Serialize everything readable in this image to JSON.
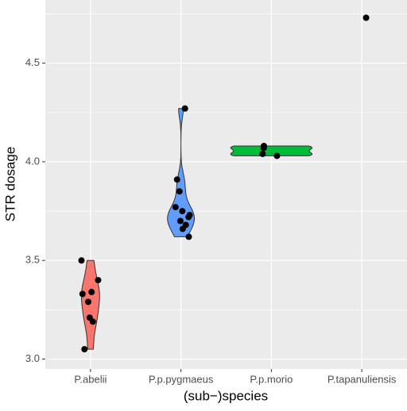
{
  "chart_data": {
    "type": "violin",
    "xlabel": "(sub−)species",
    "ylabel": "STR dosage",
    "series": [
      {
        "name": "P.abelii",
        "color": "#F8766D",
        "values": [
          3.5,
          3.4,
          3.33,
          3.34,
          3.29,
          3.21,
          3.19,
          3.05
        ]
      },
      {
        "name": "P.p.pygmaeus",
        "color": "#619CFF",
        "values": [
          4.27,
          3.91,
          3.85,
          3.77,
          3.75,
          3.73,
          3.72,
          3.7,
          3.68,
          3.66,
          3.62
        ]
      },
      {
        "name": "P.p.morio",
        "color": "#00BA38",
        "values": [
          4.03,
          4.04,
          4.08,
          4.07
        ]
      },
      {
        "name": "P.tapanuliensis",
        "values": [
          4.73
        ]
      }
    ],
    "ylim": [
      2.95,
      4.82
    ],
    "yticks": [
      {
        "value": 3,
        "label": "3.0"
      },
      3.5,
      {
        "value": 4,
        "label": "4.0"
      },
      4.5
    ],
    "minor_yticks": [
      3.25,
      3.75,
      4.25,
      4.75
    ],
    "grid": true,
    "point_color": "#000000"
  }
}
